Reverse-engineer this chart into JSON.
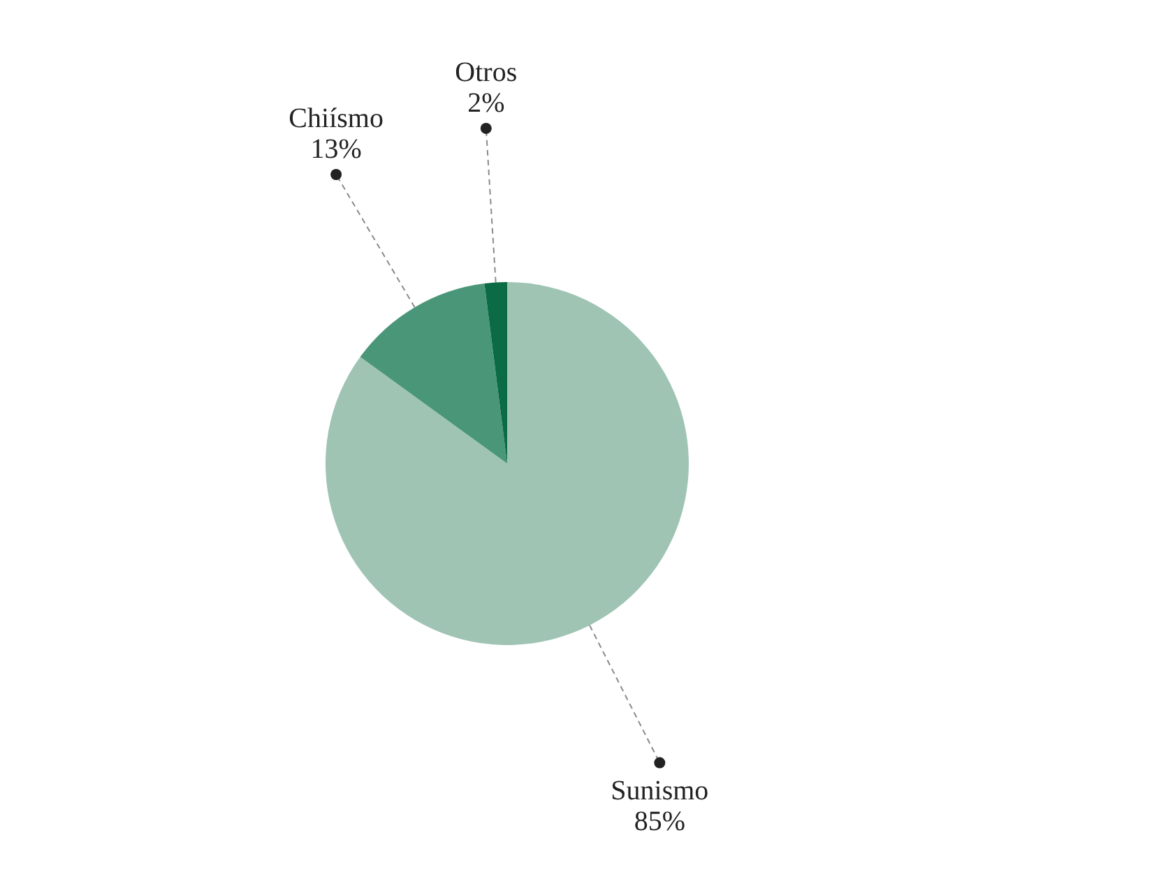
{
  "chart_data": {
    "type": "pie",
    "categories": [
      "Sunismo",
      "Chiísmo",
      "Otros"
    ],
    "values": [
      85,
      13,
      2
    ],
    "value_labels": [
      "85%",
      "13%",
      "2%"
    ],
    "colors": [
      "#9fc4b4",
      "#4a9678",
      "#0b6b45"
    ],
    "legend": false
  }
}
